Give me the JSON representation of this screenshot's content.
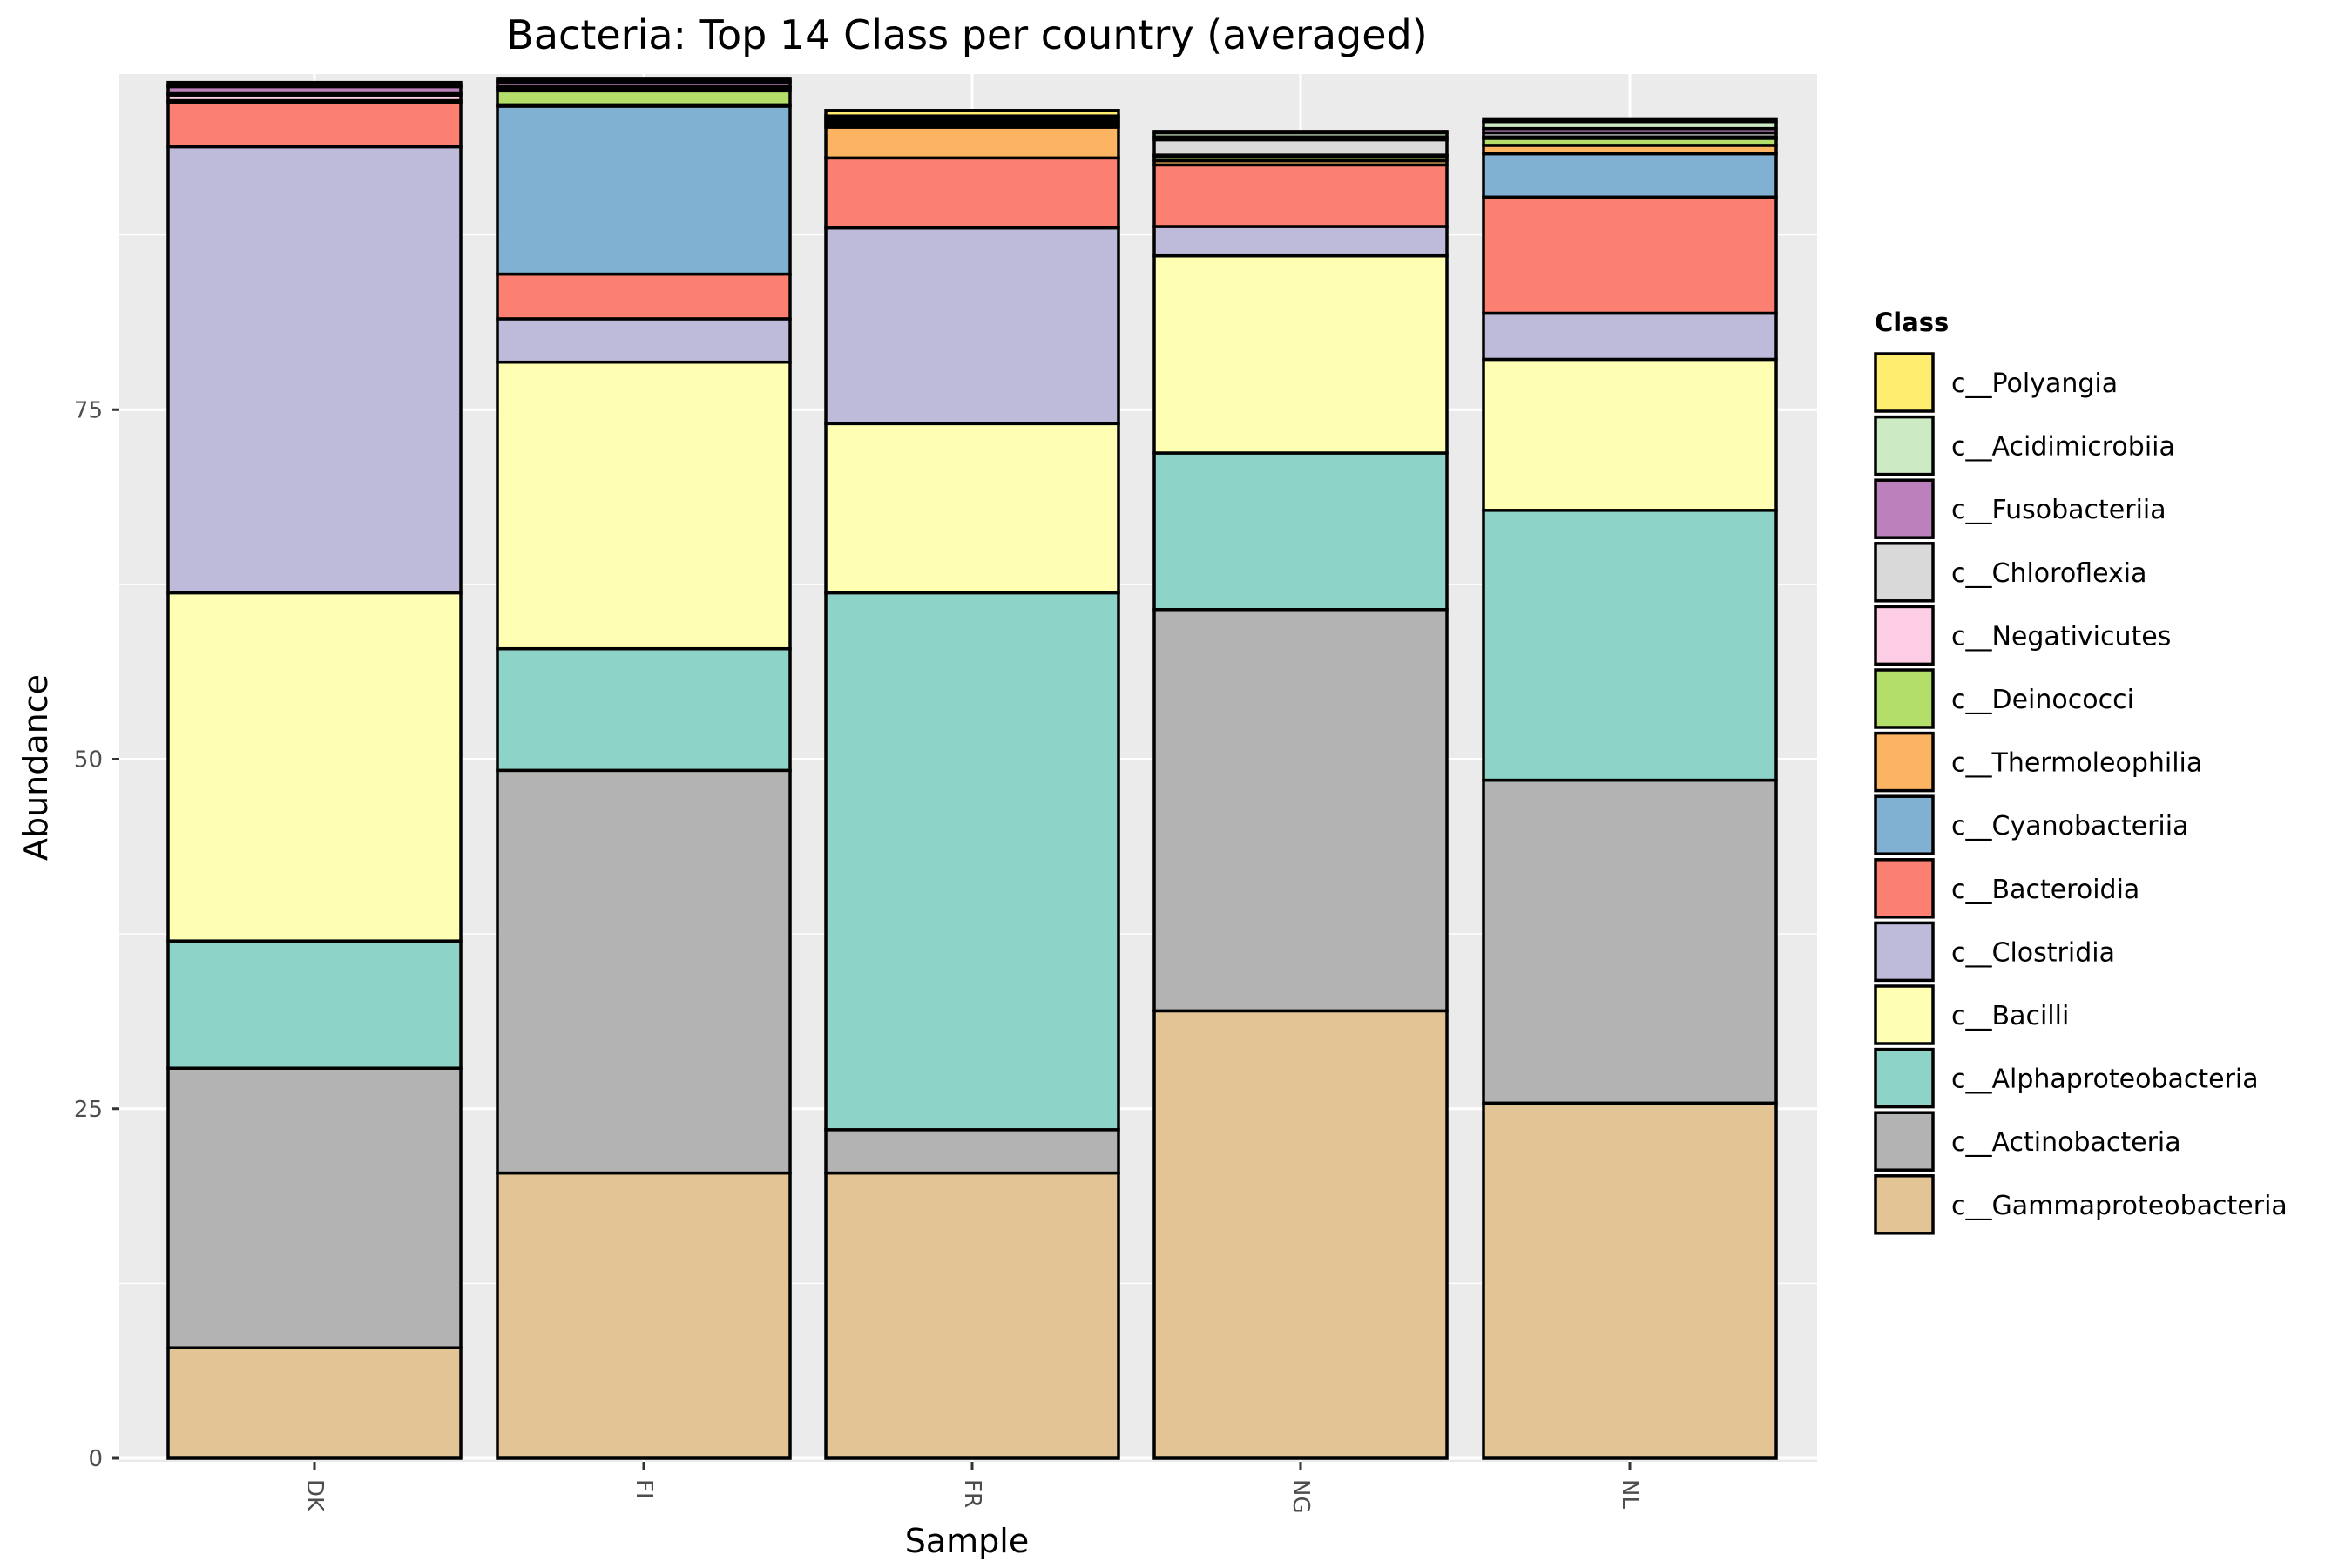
{
  "chart_data": {
    "type": "bar",
    "stacked": true,
    "title": "Bacteria: Top 14 Class per country (averaged)",
    "xlabel": "Sample",
    "ylabel": "Abundance",
    "ylim": [
      0,
      100
    ],
    "yticks": [
      0,
      25,
      50,
      75
    ],
    "grid": true,
    "legend_position": "right",
    "legend_title": "Class",
    "categories": [
      "DK",
      "FI",
      "FR",
      "NG",
      "NL"
    ],
    "series": [
      {
        "name": "c__Gammaproteobacteria",
        "color": "#E3C595",
        "values": [
          7.9,
          20.4,
          20.4,
          32.0,
          25.4
        ]
      },
      {
        "name": "c__Actinobacteria",
        "color": "#B3B3B3",
        "values": [
          20.0,
          28.8,
          3.1,
          28.7,
          23.1
        ]
      },
      {
        "name": "c__Alphaproteobacteria",
        "color": "#8DD3C7",
        "values": [
          9.1,
          8.7,
          38.4,
          11.2,
          19.3
        ]
      },
      {
        "name": "c__Bacilli",
        "color": "#FFFFB3",
        "values": [
          24.9,
          20.5,
          12.1,
          14.1,
          10.8
        ]
      },
      {
        "name": "c__Clostridia",
        "color": "#BEBADA",
        "values": [
          31.9,
          3.1,
          14.0,
          2.1,
          3.3
        ]
      },
      {
        "name": "c__Bacteroidia",
        "color": "#FB8072",
        "values": [
          3.2,
          3.2,
          5.0,
          4.4,
          8.3
        ]
      },
      {
        "name": "c__Cyanobacteriia",
        "color": "#80B1D3",
        "values": [
          0.0,
          12.0,
          0.0,
          0.0,
          3.1
        ]
      },
      {
        "name": "c__Thermoleophilia",
        "color": "#FDB462",
        "values": [
          0.1,
          0.1,
          2.2,
          0.3,
          0.6
        ]
      },
      {
        "name": "c__Deinococci",
        "color": "#B3DE69",
        "values": [
          0.0,
          1.0,
          0.0,
          0.3,
          0.5
        ]
      },
      {
        "name": "c__Negativicutes",
        "color": "#FCCDE5",
        "values": [
          0.4,
          0.2,
          0.2,
          0.1,
          0.1
        ]
      },
      {
        "name": "c__Chloroflexia",
        "color": "#D9D9D9",
        "values": [
          0.1,
          0.1,
          0.2,
          1.1,
          0.3
        ]
      },
      {
        "name": "c__Fusobacteriia",
        "color": "#BC80BD",
        "values": [
          0.5,
          0.3,
          0.2,
          0.2,
          0.3
        ]
      },
      {
        "name": "c__Acidimicrobiia",
        "color": "#CCEBC5",
        "values": [
          0.1,
          0.1,
          0.2,
          0.3,
          0.5
        ]
      },
      {
        "name": "c__Polyangia",
        "color": "#FFED6F",
        "values": [
          0.2,
          0.2,
          0.4,
          0.1,
          0.2
        ]
      }
    ]
  }
}
